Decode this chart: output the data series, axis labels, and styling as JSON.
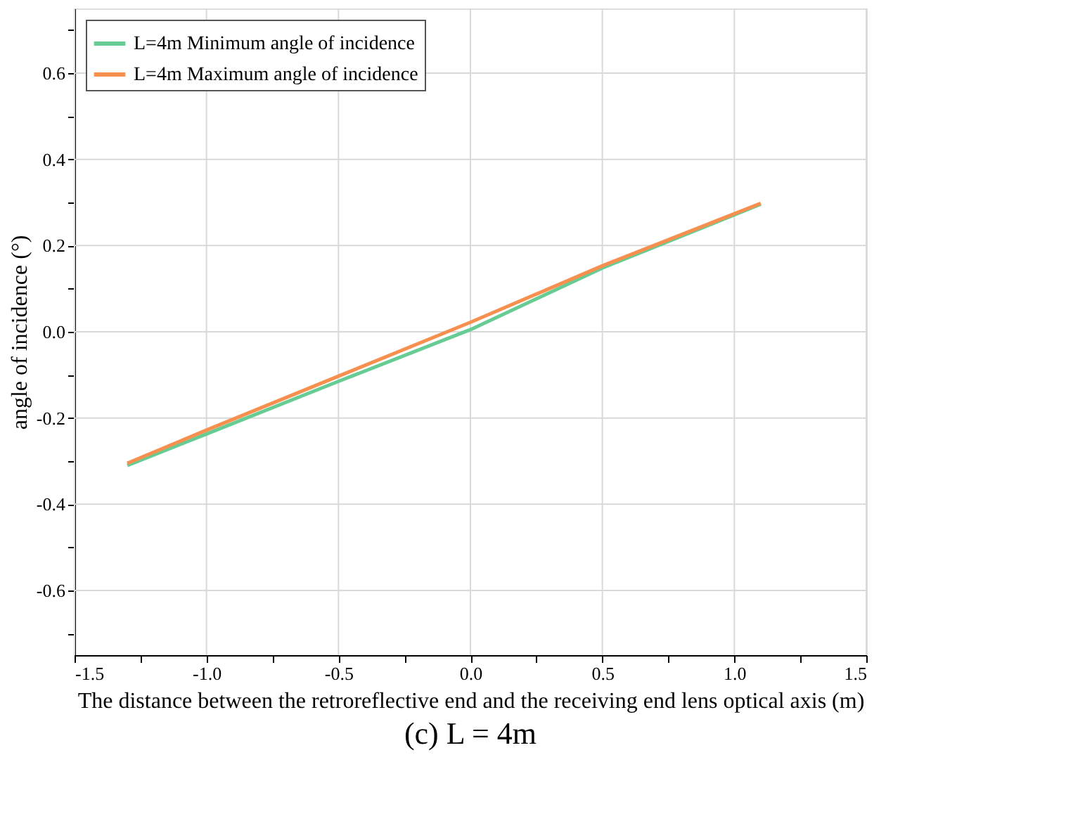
{
  "chart_data": {
    "type": "line",
    "xlabel": "The distance between the retroreflective end and the receiving end lens optical axis (m)",
    "ylabel": "angle of incidence (°)",
    "annotations": [
      "(c) L = 4m"
    ],
    "x": [
      -1.3,
      -1.0,
      -0.5,
      0.0,
      0.5,
      1.1
    ],
    "series": [
      {
        "name": "L=4m Minimum angle of incidence",
        "color": "#66cc94",
        "values": [
          -0.31,
          -0.237,
          -0.115,
          0.005,
          0.148,
          0.296
        ]
      },
      {
        "name": "L=4m Maximum angle of incidence",
        "color": "#f7904f",
        "values": [
          -0.305,
          -0.228,
          -0.103,
          0.022,
          0.153,
          0.298
        ]
      }
    ],
    "xlim": [
      -1.5,
      1.5
    ],
    "xticks": [
      -1.5,
      {
        "value": -1.25,
        "label": null
      },
      {
        "value": -1.0,
        "label": "-1.0"
      },
      {
        "value": -0.75,
        "label": null
      },
      -0.5,
      {
        "value": -0.25,
        "label": null
      },
      {
        "value": 0,
        "label": "0.0"
      },
      {
        "value": 0.25,
        "label": null
      },
      0.5,
      {
        "value": 0.75,
        "label": null
      },
      {
        "value": 1.0,
        "label": "1.0"
      },
      {
        "value": 1.25,
        "label": null
      },
      1.5
    ],
    "ylim": [
      -0.75,
      0.75
    ],
    "yticks": [
      {
        "value": -0.7,
        "label": null
      },
      -0.6,
      {
        "value": -0.5,
        "label": null
      },
      -0.4,
      {
        "value": -0.3,
        "label": null
      },
      -0.2,
      {
        "value": -0.1,
        "label": null
      },
      {
        "value": 0,
        "label": "0.0"
      },
      {
        "value": 0.1,
        "label": null
      },
      0.2,
      {
        "value": 0.3,
        "label": null
      },
      0.4,
      {
        "value": 0.5,
        "label": null
      },
      0.6,
      {
        "value": 0.7,
        "label": null
      }
    ],
    "grid": true,
    "legend": "top left",
    "line_style": "solid",
    "marker": "none"
  }
}
